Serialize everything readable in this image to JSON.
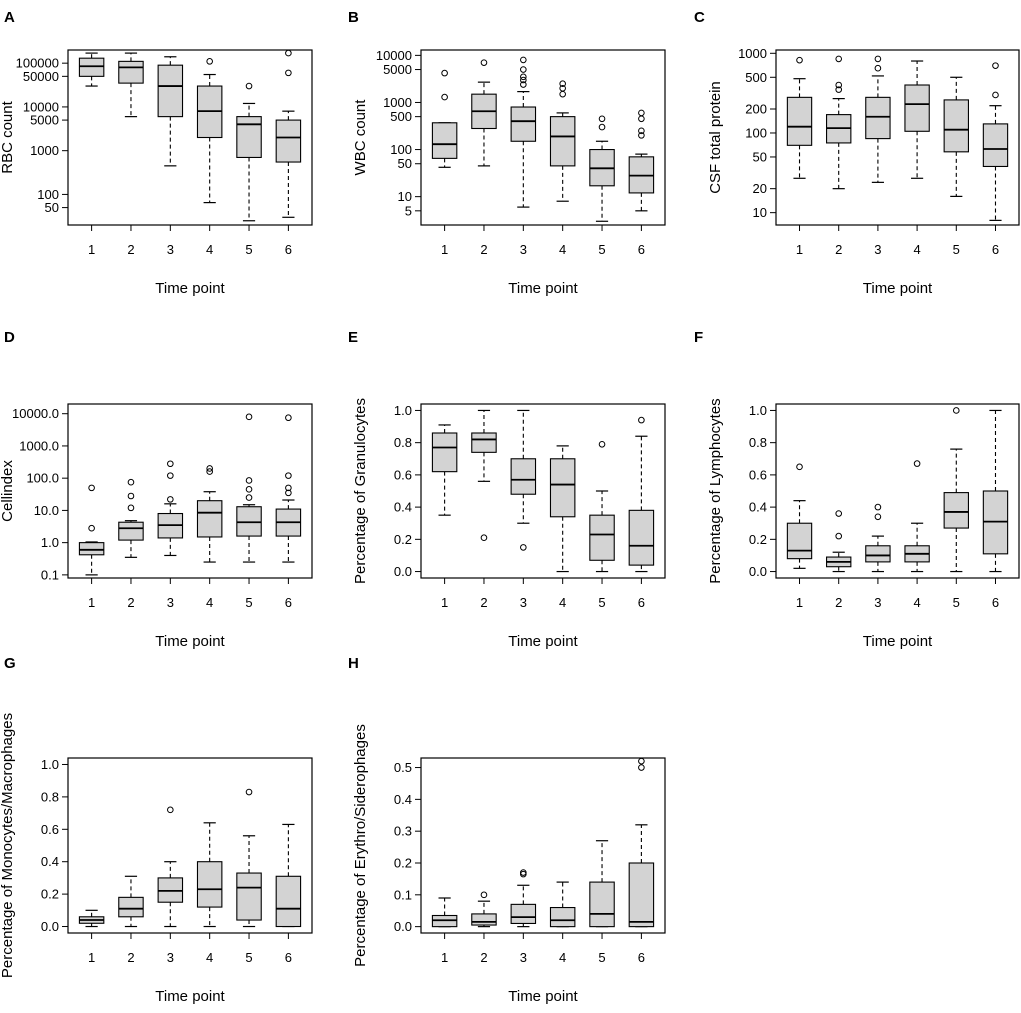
{
  "chart_data": [
    {
      "id": "A",
      "type": "box",
      "scale": "log",
      "ylabel": "RBC count",
      "xlabel": "Time point",
      "categories": [
        "1",
        "2",
        "3",
        "4",
        "5",
        "6"
      ],
      "yticks": [
        50,
        100,
        1000,
        5000,
        10000,
        50000,
        100000
      ],
      "ytick_labels": [
        "50",
        "100",
        "1000",
        "5000",
        "10000",
        "50000",
        "100000"
      ],
      "ylim": [
        20,
        200000
      ],
      "boxes": [
        {
          "low": 30000,
          "q1": 50000,
          "median": 85000,
          "q3": 130000,
          "high": 170000,
          "outliers": []
        },
        {
          "low": 6000,
          "q1": 35000,
          "median": 80000,
          "q3": 110000,
          "high": 170000,
          "outliers": []
        },
        {
          "low": 450,
          "q1": 6000,
          "median": 30000,
          "q3": 90000,
          "high": 140000,
          "outliers": []
        },
        {
          "low": 65,
          "q1": 2000,
          "median": 8000,
          "q3": 30000,
          "high": 55000,
          "outliers": [
            110000
          ]
        },
        {
          "low": 25,
          "q1": 700,
          "median": 4000,
          "q3": 6000,
          "high": 12000,
          "outliers": [
            30000
          ]
        },
        {
          "low": 30,
          "q1": 550,
          "median": 2000,
          "q3": 5000,
          "high": 8000,
          "outliers": [
            60000,
            170000
          ]
        }
      ]
    },
    {
      "id": "B",
      "type": "box",
      "scale": "log",
      "ylabel": "WBC count",
      "xlabel": "Time point",
      "categories": [
        "1",
        "2",
        "3",
        "4",
        "5",
        "6"
      ],
      "yticks": [
        5,
        10,
        50,
        100,
        500,
        1000,
        5000,
        10000
      ],
      "ytick_labels": [
        "5",
        "10",
        "50",
        "100",
        "500",
        "1000",
        "5000",
        "10000"
      ],
      "ylim": [
        2.5,
        13000
      ],
      "boxes": [
        {
          "low": 42,
          "q1": 65,
          "median": 130,
          "q3": 370,
          "high": 370,
          "outliers": [
            1300,
            4200
          ]
        },
        {
          "low": 45,
          "q1": 280,
          "median": 650,
          "q3": 1500,
          "high": 2700,
          "outliers": [
            7000
          ]
        },
        {
          "low": 6,
          "q1": 150,
          "median": 400,
          "q3": 800,
          "high": 1700,
          "outliers": [
            2400,
            3000,
            3500,
            5000,
            8000
          ]
        },
        {
          "low": 8,
          "q1": 45,
          "median": 190,
          "q3": 500,
          "high": 600,
          "outliers": [
            1500,
            2000,
            2500
          ]
        },
        {
          "low": 3,
          "q1": 17,
          "median": 40,
          "q3": 100,
          "high": 150,
          "outliers": [
            300,
            450
          ]
        },
        {
          "low": 5,
          "q1": 12,
          "median": 28,
          "q3": 70,
          "high": 80,
          "outliers": [
            200,
            250,
            450,
            600
          ]
        }
      ]
    },
    {
      "id": "C",
      "type": "box",
      "scale": "log",
      "ylabel": "CSF  total protein",
      "xlabel": "Time point",
      "categories": [
        "1",
        "2",
        "3",
        "4",
        "5",
        "6"
      ],
      "yticks": [
        10,
        20,
        50,
        100,
        200,
        500,
        1000
      ],
      "ytick_labels": [
        "10",
        "20",
        "50",
        "100",
        "200",
        "500",
        "1000"
      ],
      "ylim": [
        7,
        1100
      ],
      "boxes": [
        {
          "low": 27,
          "q1": 70,
          "median": 120,
          "q3": 280,
          "high": 480,
          "outliers": [
            820
          ]
        },
        {
          "low": 20,
          "q1": 75,
          "median": 115,
          "q3": 170,
          "high": 270,
          "outliers": [
            350,
            400,
            850
          ]
        },
        {
          "low": 24,
          "q1": 85,
          "median": 160,
          "q3": 280,
          "high": 520,
          "outliers": [
            650,
            850
          ]
        },
        {
          "low": 27,
          "q1": 105,
          "median": 230,
          "q3": 400,
          "high": 800,
          "outliers": []
        },
        {
          "low": 16,
          "q1": 58,
          "median": 110,
          "q3": 260,
          "high": 500,
          "outliers": []
        },
        {
          "low": 8,
          "q1": 38,
          "median": 63,
          "q3": 130,
          "high": 220,
          "outliers": [
            300,
            700
          ]
        }
      ]
    },
    {
      "id": "D",
      "type": "box",
      "scale": "log",
      "ylabel": "Cellindex",
      "xlabel": "Time point",
      "categories": [
        "1",
        "2",
        "3",
        "4",
        "5",
        "6"
      ],
      "yticks": [
        0.1,
        1,
        10,
        100,
        1000,
        10000
      ],
      "ytick_labels": [
        "0.1",
        "1.0",
        "10.0",
        "100.0",
        "1000.0",
        "10000.0"
      ],
      "ylim": [
        0.08,
        20000
      ],
      "boxes": [
        {
          "low": 0.1,
          "q1": 0.42,
          "median": 0.6,
          "q3": 1.0,
          "high": 1.05,
          "outliers": [
            2.8,
            50
          ]
        },
        {
          "low": 0.35,
          "q1": 1.2,
          "median": 2.8,
          "q3": 4.3,
          "high": 4.8,
          "outliers": [
            12,
            28,
            75
          ]
        },
        {
          "low": 0.4,
          "q1": 1.4,
          "median": 3.5,
          "q3": 8,
          "high": 16,
          "outliers": [
            22,
            120,
            280
          ]
        },
        {
          "low": 0.25,
          "q1": 1.5,
          "median": 8.5,
          "q3": 20,
          "high": 38,
          "outliers": [
            160,
            200
          ]
        },
        {
          "low": 0.25,
          "q1": 1.6,
          "median": 4.3,
          "q3": 13,
          "high": 15,
          "outliers": [
            25,
            45,
            85,
            8000
          ]
        },
        {
          "low": 0.25,
          "q1": 1.6,
          "median": 4.3,
          "q3": 11,
          "high": 21,
          "outliers": [
            35,
            50,
            120,
            7500
          ]
        }
      ]
    },
    {
      "id": "E",
      "type": "box",
      "scale": "linear",
      "ylabel": "Percentage of Granulocytes",
      "xlabel": "Time point",
      "categories": [
        "1",
        "2",
        "3",
        "4",
        "5",
        "6"
      ],
      "yticks": [
        0,
        0.2,
        0.4,
        0.6,
        0.8,
        1.0
      ],
      "ytick_labels": [
        "0.0",
        "0.2",
        "0.4",
        "0.6",
        "0.8",
        "1.0"
      ],
      "ylim": [
        -0.04,
        1.04
      ],
      "boxes": [
        {
          "low": 0.35,
          "q1": 0.62,
          "median": 0.77,
          "q3": 0.86,
          "high": 0.91,
          "outliers": []
        },
        {
          "low": 0.56,
          "q1": 0.74,
          "median": 0.82,
          "q3": 0.86,
          "high": 1.0,
          "outliers": [
            0.21
          ]
        },
        {
          "low": 0.3,
          "q1": 0.48,
          "median": 0.57,
          "q3": 0.7,
          "high": 1.0,
          "outliers": [
            0.15
          ]
        },
        {
          "low": 0.0,
          "q1": 0.34,
          "median": 0.54,
          "q3": 0.7,
          "high": 0.78,
          "outliers": []
        },
        {
          "low": 0.0,
          "q1": 0.07,
          "median": 0.23,
          "q3": 0.35,
          "high": 0.5,
          "outliers": [
            0.79
          ]
        },
        {
          "low": 0.0,
          "q1": 0.04,
          "median": 0.16,
          "q3": 0.38,
          "high": 0.84,
          "outliers": [
            0.94
          ]
        }
      ]
    },
    {
      "id": "F",
      "type": "box",
      "scale": "linear",
      "ylabel": "Percentage of Lymphocytes",
      "xlabel": "Time point",
      "categories": [
        "1",
        "2",
        "3",
        "4",
        "5",
        "6"
      ],
      "yticks": [
        0,
        0.2,
        0.4,
        0.6,
        0.8,
        1.0
      ],
      "ytick_labels": [
        "0.0",
        "0.2",
        "0.4",
        "0.6",
        "0.8",
        "1.0"
      ],
      "ylim": [
        -0.04,
        1.04
      ],
      "boxes": [
        {
          "low": 0.02,
          "q1": 0.08,
          "median": 0.13,
          "q3": 0.3,
          "high": 0.44,
          "outliers": [
            0.65
          ]
        },
        {
          "low": 0.0,
          "q1": 0.03,
          "median": 0.06,
          "q3": 0.09,
          "high": 0.12,
          "outliers": [
            0.22,
            0.36
          ]
        },
        {
          "low": 0.0,
          "q1": 0.06,
          "median": 0.1,
          "q3": 0.16,
          "high": 0.22,
          "outliers": [
            0.34,
            0.4
          ]
        },
        {
          "low": 0.0,
          "q1": 0.06,
          "median": 0.11,
          "q3": 0.16,
          "high": 0.3,
          "outliers": [
            0.67
          ]
        },
        {
          "low": 0.0,
          "q1": 0.27,
          "median": 0.37,
          "q3": 0.49,
          "high": 0.76,
          "outliers": [
            1.0
          ]
        },
        {
          "low": 0.0,
          "q1": 0.11,
          "median": 0.31,
          "q3": 0.5,
          "high": 1.0,
          "outliers": []
        }
      ]
    },
    {
      "id": "G",
      "type": "box",
      "scale": "linear",
      "ylabel": "Percentage of Monocytes/Macrophages",
      "xlabel": "Time point",
      "categories": [
        "1",
        "2",
        "3",
        "4",
        "5",
        "6"
      ],
      "yticks": [
        0,
        0.2,
        0.4,
        0.6,
        0.8,
        1.0
      ],
      "ytick_labels": [
        "0.0",
        "0.2",
        "0.4",
        "0.6",
        "0.8",
        "1.0"
      ],
      "ylim": [
        -0.04,
        1.04
      ],
      "boxes": [
        {
          "low": 0.0,
          "q1": 0.02,
          "median": 0.04,
          "q3": 0.06,
          "high": 0.1,
          "outliers": []
        },
        {
          "low": 0.0,
          "q1": 0.06,
          "median": 0.11,
          "q3": 0.18,
          "high": 0.31,
          "outliers": []
        },
        {
          "low": 0.0,
          "q1": 0.15,
          "median": 0.22,
          "q3": 0.3,
          "high": 0.4,
          "outliers": [
            0.72
          ]
        },
        {
          "low": 0.0,
          "q1": 0.12,
          "median": 0.23,
          "q3": 0.4,
          "high": 0.64,
          "outliers": []
        },
        {
          "low": 0.0,
          "q1": 0.04,
          "median": 0.24,
          "q3": 0.33,
          "high": 0.56,
          "outliers": [
            0.83
          ]
        },
        {
          "low": 0.0,
          "q1": 0.0,
          "median": 0.11,
          "q3": 0.31,
          "high": 0.63,
          "outliers": []
        }
      ]
    },
    {
      "id": "H",
      "type": "box",
      "scale": "linear",
      "ylabel": "Percentage of Erythro/Siderophages",
      "xlabel": "Time point",
      "categories": [
        "1",
        "2",
        "3",
        "4",
        "5",
        "6"
      ],
      "yticks": [
        0,
        0.1,
        0.2,
        0.3,
        0.4,
        0.5
      ],
      "ytick_labels": [
        "0.0",
        "0.1",
        "0.2",
        "0.3",
        "0.4",
        "0.5"
      ],
      "ylim": [
        -0.02,
        0.53
      ],
      "boxes": [
        {
          "low": 0.0,
          "q1": 0.0,
          "median": 0.02,
          "q3": 0.035,
          "high": 0.09,
          "outliers": []
        },
        {
          "low": 0.0,
          "q1": 0.005,
          "median": 0.015,
          "q3": 0.04,
          "high": 0.08,
          "outliers": [
            0.1
          ]
        },
        {
          "low": 0.0,
          "q1": 0.01,
          "median": 0.03,
          "q3": 0.07,
          "high": 0.13,
          "outliers": [
            0.165,
            0.17
          ]
        },
        {
          "low": 0.0,
          "q1": 0.0,
          "median": 0.02,
          "q3": 0.06,
          "high": 0.14,
          "outliers": []
        },
        {
          "low": 0.0,
          "q1": 0.0,
          "median": 0.04,
          "q3": 0.14,
          "high": 0.27,
          "outliers": []
        },
        {
          "low": 0.0,
          "q1": 0.0,
          "median": 0.015,
          "q3": 0.2,
          "high": 0.32,
          "outliers": [
            0.5,
            0.52
          ]
        }
      ]
    }
  ],
  "colors": {
    "box_fill": "#d3d3d3",
    "stroke": "#000000"
  }
}
